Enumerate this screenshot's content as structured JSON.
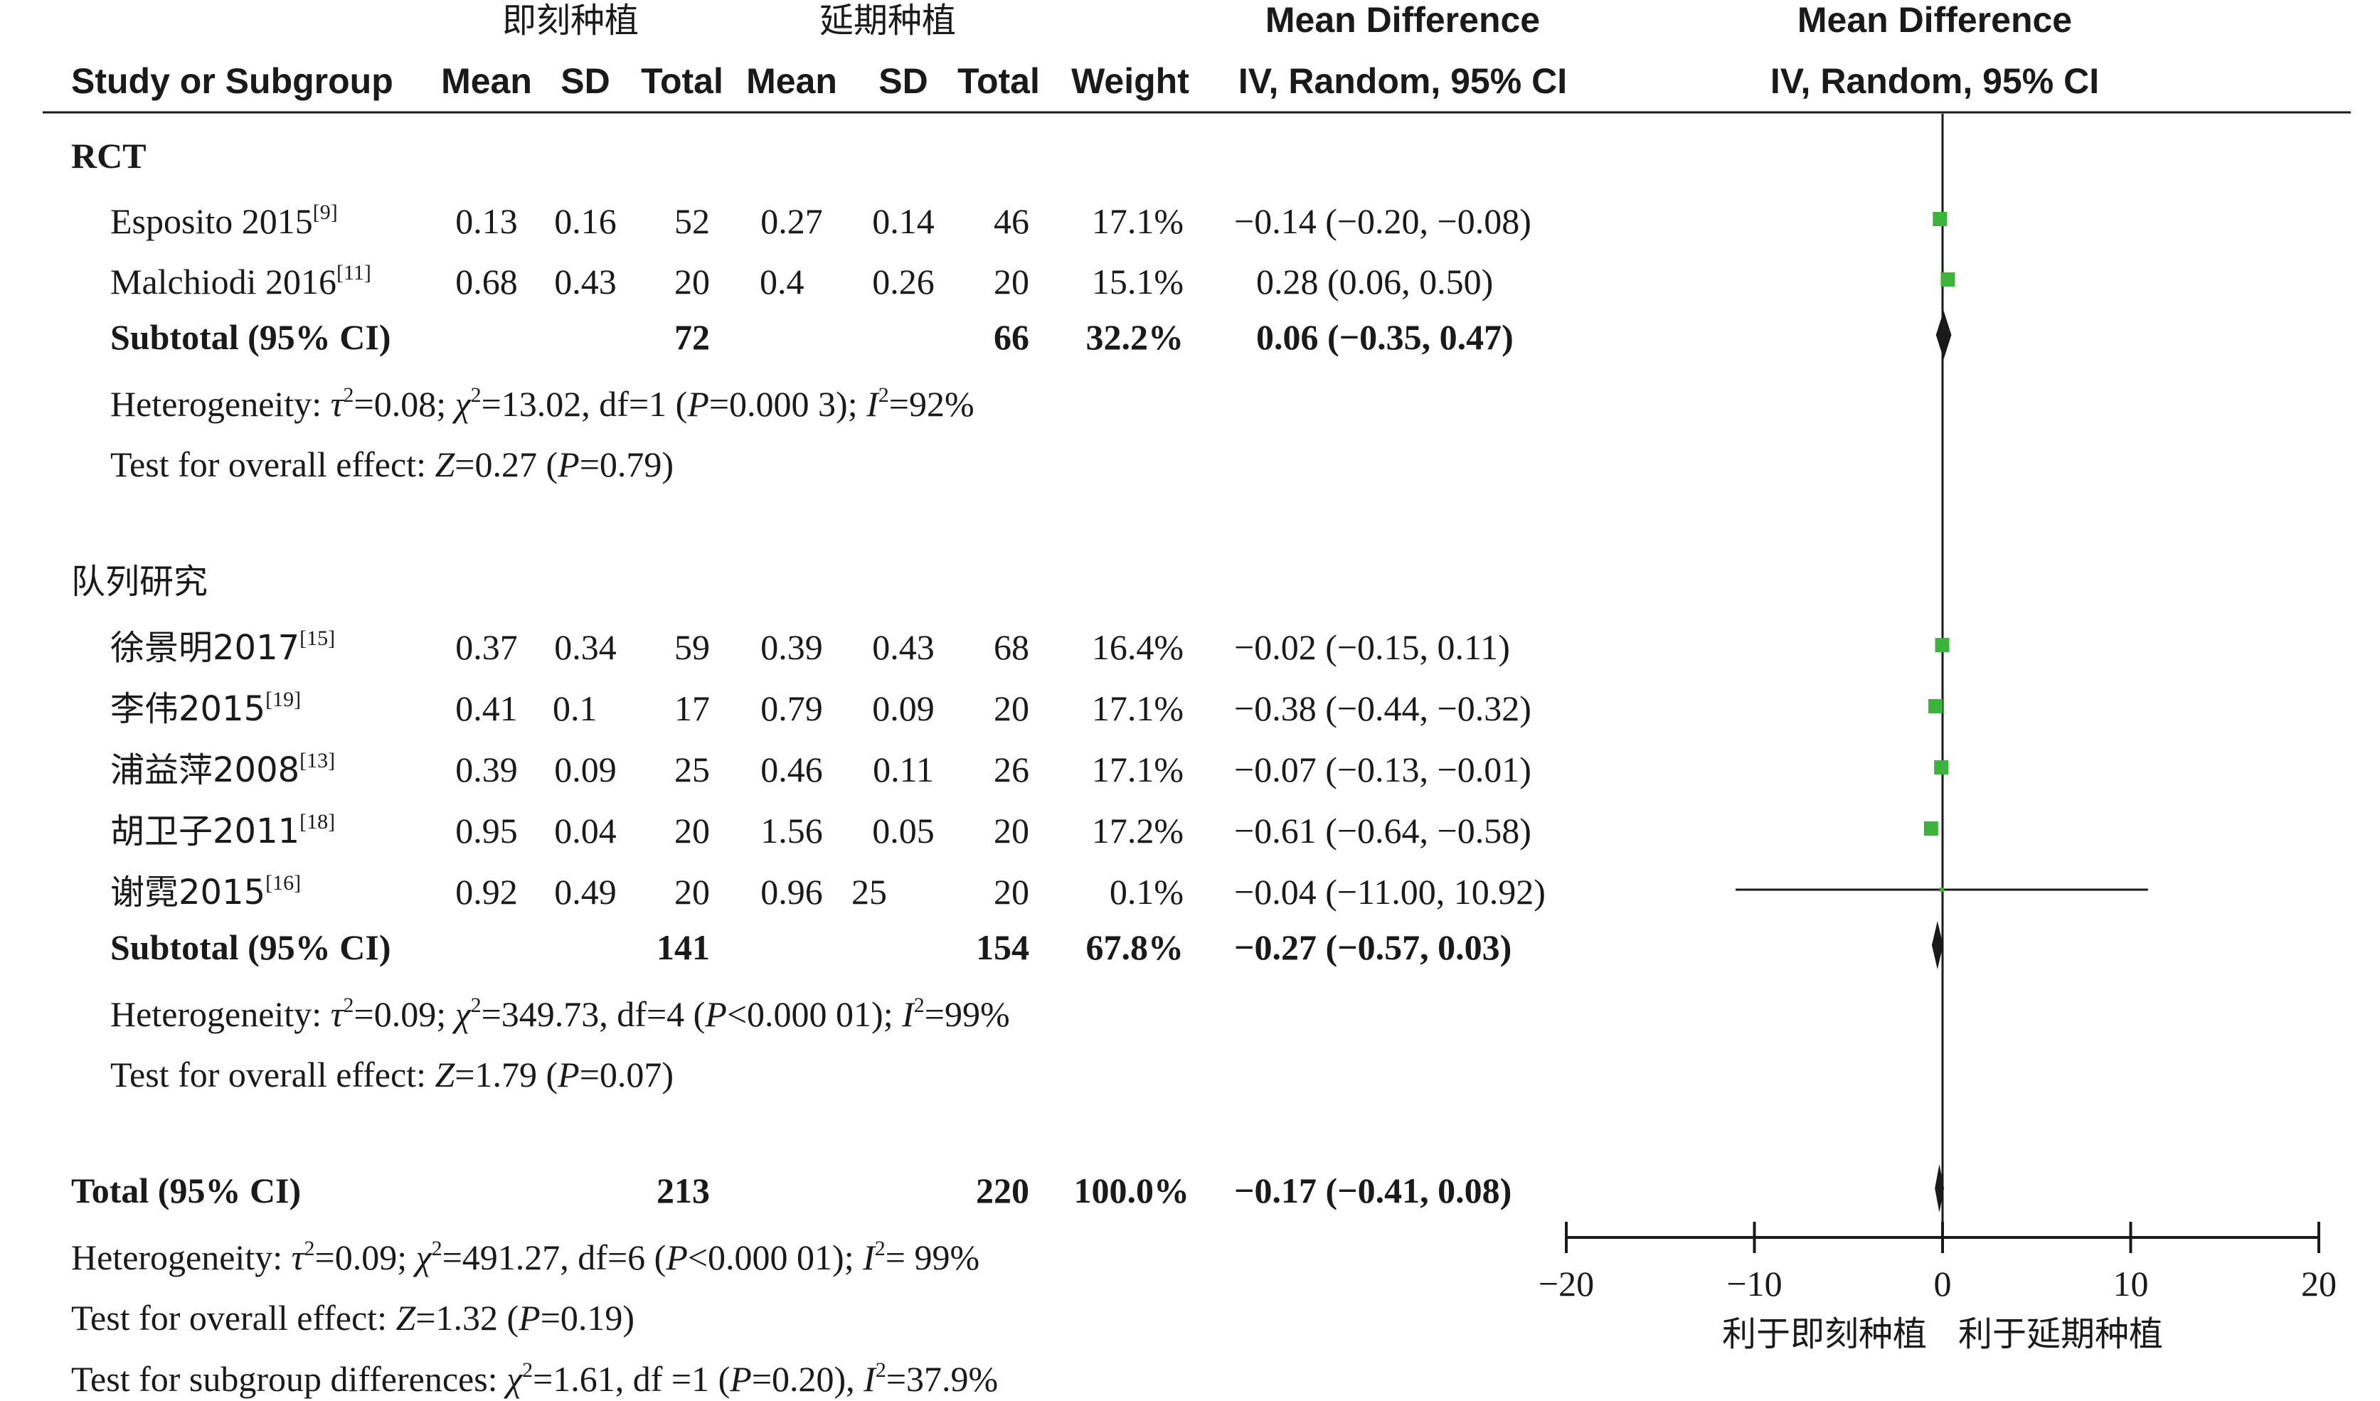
{
  "header": {
    "group1": "即刻种植",
    "group2": "延期种植",
    "md_top": "Mean Difference",
    "md_sub": "IV, Random, 95% CI",
    "plot_top": "Mean Difference",
    "plot_sub": "IV, Random, 95% CI",
    "study": "Study or Subgroup",
    "mean1": "Mean",
    "sd1": "SD",
    "total1": "Total",
    "mean2": "Mean",
    "sd2": "SD",
    "total2": "Total",
    "weight": "Weight"
  },
  "subgroups": [
    {
      "title": "RCT",
      "studies": [
        {
          "name": "Esposito 2015",
          "ref": "[9]",
          "mean1": "0.13",
          "sd1": "0.16",
          "total1": "52",
          "mean2": "0.27",
          "sd2": "0.14",
          "total2": "46",
          "weight": "17.1%",
          "ci_text": "−0.14 (−0.20, −0.08)",
          "md": -0.14,
          "lo": -0.2,
          "hi": -0.08,
          "w": 17.1
        },
        {
          "name": "Malchiodi 2016",
          "ref": "[11]",
          "mean1": "0.68",
          "sd1": "0.43",
          "total1": "20",
          "mean2": "0.4",
          "sd2": "0.26",
          "total2": "20",
          "weight": "15.1%",
          "ci_text": "0.28 (0.06, 0.50)",
          "md": 0.28,
          "lo": 0.06,
          "hi": 0.5,
          "w": 15.1
        }
      ],
      "subtotal": {
        "label": "Subtotal (95% CI)",
        "total1": "72",
        "total2": "66",
        "weight": "32.2%",
        "ci_text": "0.06 (−0.35, 0.47)",
        "md": 0.06,
        "lo": -0.35,
        "hi": 0.47
      },
      "het": {
        "a": "Heterogeneity: ",
        "tau": "τ",
        "b": "=0.08; ",
        "chi": "χ",
        "c": "=13.02, df=1 (",
        "p": "P",
        "d": "=0.000 3); ",
        "i": "I",
        "e": "=92%"
      },
      "effect": {
        "a": "Test for overall effect: ",
        "z": "Z",
        "b": "=0.27 (",
        "p": "P",
        "c": "=0.79)"
      }
    },
    {
      "title": "队列研究",
      "studies": [
        {
          "name": "徐景明2017",
          "ref": "[15]",
          "mean1": "0.37",
          "sd1": "0.34",
          "total1": "59",
          "mean2": "0.39",
          "sd2": "0.43",
          "total2": "68",
          "weight": "16.4%",
          "ci_text": "−0.02 (−0.15, 0.11)",
          "md": -0.02,
          "lo": -0.15,
          "hi": 0.11,
          "w": 16.4
        },
        {
          "name": "李伟2015",
          "ref": "[19]",
          "mean1": "0.41",
          "sd1": "0.1",
          "total1": "17",
          "mean2": "0.79",
          "sd2": "0.09",
          "total2": "20",
          "weight": "17.1%",
          "ci_text": "−0.38 (−0.44, −0.32)",
          "md": -0.38,
          "lo": -0.44,
          "hi": -0.32,
          "w": 17.1
        },
        {
          "name": "浦益萍2008",
          "ref": "[13]",
          "mean1": "0.39",
          "sd1": "0.09",
          "total1": "25",
          "mean2": "0.46",
          "sd2": "0.11",
          "total2": "26",
          "weight": "17.1%",
          "ci_text": "−0.07 (−0.13, −0.01)",
          "md": -0.07,
          "lo": -0.13,
          "hi": -0.01,
          "w": 17.1
        },
        {
          "name": "胡卫子2011",
          "ref": "[18]",
          "mean1": "0.95",
          "sd1": "0.04",
          "total1": "20",
          "mean2": "1.56",
          "sd2": "0.05",
          "total2": "20",
          "weight": "17.2%",
          "ci_text": "−0.61 (−0.64, −0.58)",
          "md": -0.61,
          "lo": -0.64,
          "hi": -0.58,
          "w": 17.2
        },
        {
          "name": "谢霓2015",
          "ref": "[16]",
          "mean1": "0.92",
          "sd1": "0.49",
          "total1": "20",
          "mean2": "0.96",
          "sd2": "25",
          "total2": "20",
          "weight": "0.1%",
          "ci_text": "−0.04 (−11.00, 10.92)",
          "md": -0.04,
          "lo": -11.0,
          "hi": 10.92,
          "w": 0.1
        }
      ],
      "subtotal": {
        "label": "Subtotal (95% CI)",
        "total1": "141",
        "total2": "154",
        "weight": "67.8%",
        "ci_text": "−0.27 (−0.57, 0.03)",
        "md": -0.27,
        "lo": -0.57,
        "hi": 0.03
      },
      "het": {
        "a": "Heterogeneity: ",
        "tau": "τ",
        "b": "=0.09; ",
        "chi": "χ",
        "c": "=349.73, df=4 (",
        "p": "P",
        "d": "<0.000 01); ",
        "i": "I",
        "e": "=99%"
      },
      "effect": {
        "a": "Test for overall effect: ",
        "z": "Z",
        "b": "=1.79 (",
        "p": "P",
        "c": "=0.07)"
      }
    }
  ],
  "total": {
    "label": "Total (95% CI)",
    "total1": "213",
    "total2": "220",
    "weight": "100.0%",
    "ci_text": "−0.17 (−0.41, 0.08)",
    "md": -0.17,
    "lo": -0.41,
    "hi": 0.08,
    "het": {
      "a": "Heterogeneity: ",
      "tau": "τ",
      "b": "=0.09; ",
      "chi": "χ",
      "c": "=491.27, df=6 (",
      "p": "P",
      "d": "<0.000 01); ",
      "i": "I",
      "e": "= 99%"
    },
    "effect": {
      "a": "Test for overall effect: ",
      "z": "Z",
      "b": "=1.32 (",
      "p": "P",
      "c": "=0.19)"
    },
    "subgroup_diff": {
      "a": "Test for subgroup differences: ",
      "chi": "χ",
      "b": "=1.61, df =1 (",
      "p": "P",
      "c": "=0.20), ",
      "i": "I",
      "d": "=37.9%"
    }
  },
  "axis": {
    "ticks": [
      "−20",
      "−10",
      "0",
      "10",
      "20"
    ],
    "favours_left": "利于即刻种植",
    "favours_right": "利于延期种植"
  },
  "chart_data": {
    "type": "forest",
    "xlim": [
      -20,
      20
    ],
    "xticks": [
      -20,
      -10,
      0,
      10,
      20
    ],
    "marker_color": "#3cb43c",
    "diamond_color": "#1a1a1a",
    "studies": [
      {
        "name": "Esposito 2015",
        "md": -0.14,
        "lo": -0.2,
        "hi": -0.08,
        "weight": 17.1
      },
      {
        "name": "Malchiodi 2016",
        "md": 0.28,
        "lo": 0.06,
        "hi": 0.5,
        "weight": 15.1
      },
      {
        "name": "徐景明2017",
        "md": -0.02,
        "lo": -0.15,
        "hi": 0.11,
        "weight": 16.4
      },
      {
        "name": "李伟2015",
        "md": -0.38,
        "lo": -0.44,
        "hi": -0.32,
        "weight": 17.1
      },
      {
        "name": "浦益萍2008",
        "md": -0.07,
        "lo": -0.13,
        "hi": -0.01,
        "weight": 17.1
      },
      {
        "name": "胡卫子2011",
        "md": -0.61,
        "lo": -0.64,
        "hi": -0.58,
        "weight": 17.2
      },
      {
        "name": "谢霓2015",
        "md": -0.04,
        "lo": -11.0,
        "hi": 10.92,
        "weight": 0.1
      }
    ],
    "subtotals": [
      {
        "name": "RCT",
        "md": 0.06,
        "lo": -0.35,
        "hi": 0.47
      },
      {
        "name": "队列研究",
        "md": -0.27,
        "lo": -0.57,
        "hi": 0.03
      }
    ],
    "overall": {
      "md": -0.17,
      "lo": -0.41,
      "hi": 0.08
    }
  }
}
